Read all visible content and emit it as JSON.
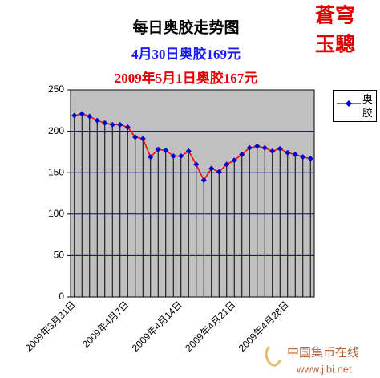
{
  "chart_data": {
    "type": "line",
    "title": "每日奥胶走势图",
    "subtitles": [
      "4月30日奥胶169元",
      "2009年5月1日奥胶167元"
    ],
    "stamp": [
      "蒼穹",
      "玉驄"
    ],
    "watermark": {
      "name": "中国集币在线",
      "url": "www.jibi.net"
    },
    "categories": [
      "2009年3月31日",
      null,
      null,
      null,
      null,
      null,
      null,
      "2009年4月7日",
      null,
      null,
      null,
      null,
      null,
      null,
      "2009年4月14日",
      null,
      null,
      null,
      null,
      null,
      null,
      "2009年4月21日",
      null,
      null,
      null,
      null,
      null,
      null,
      "2009年4月28日",
      null,
      null,
      null
    ],
    "series": [
      {
        "name": "奥胶",
        "color": "#ff0000",
        "marker_color": "#0000cc",
        "values": [
          219,
          221,
          218,
          213,
          210,
          208,
          208,
          205,
          193,
          191,
          169,
          178,
          177,
          170,
          170,
          176,
          160,
          141,
          155,
          151,
          160,
          165,
          172,
          180,
          182,
          180,
          176,
          179,
          174,
          172,
          169,
          167
        ]
      }
    ],
    "ylim": [
      0,
      250
    ],
    "yticks": [
      0,
      50,
      100,
      150,
      200,
      250
    ],
    "grid": true,
    "legend": "right"
  }
}
